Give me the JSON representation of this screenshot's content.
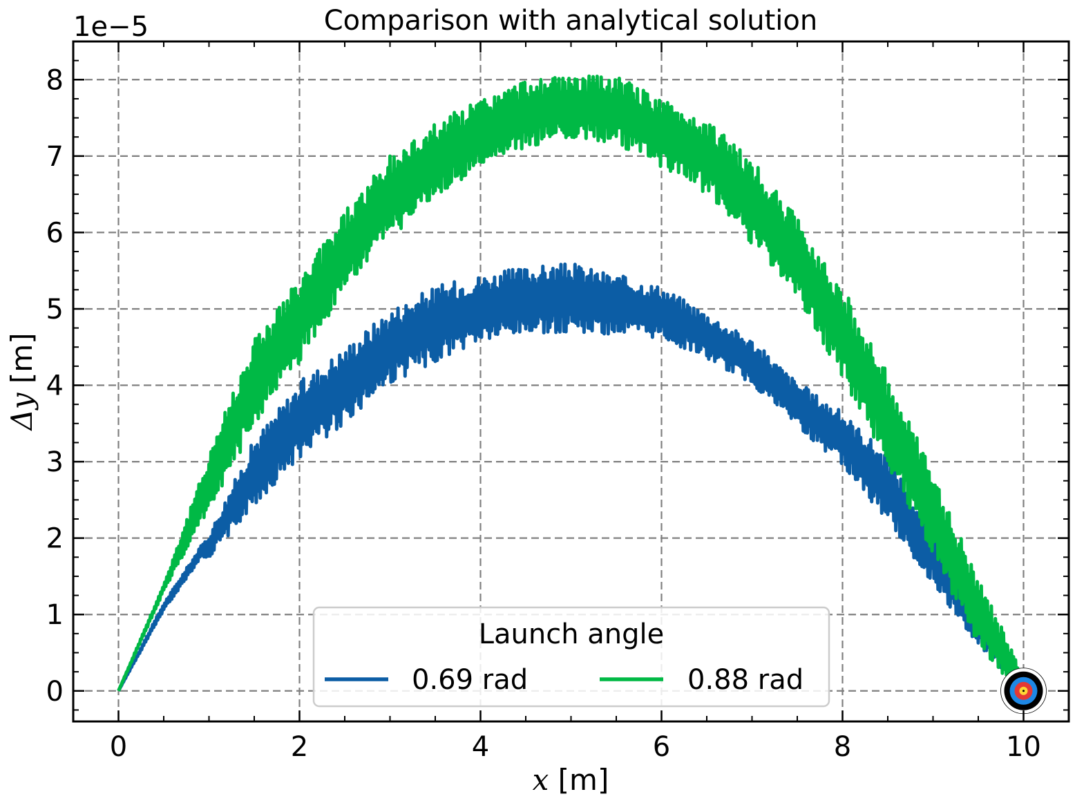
{
  "chart_data": {
    "type": "line",
    "title": "Comparison with analytical solution",
    "xlabel_var": "x",
    "xlabel_unit": " [m]",
    "ylabel_var": "Δy",
    "ylabel_unit": " [m]",
    "offset_text": "1e−5",
    "xlim": [
      -0.5,
      10.5
    ],
    "ylim": [
      -0.4,
      8.5
    ],
    "xticks": [
      0,
      2,
      4,
      6,
      8,
      10
    ],
    "xtick_labels": [
      "0",
      "2",
      "4",
      "6",
      "8",
      "10"
    ],
    "yticks": [
      0,
      1,
      2,
      3,
      4,
      5,
      6,
      7,
      8
    ],
    "ytick_labels": [
      "0",
      "1",
      "2",
      "3",
      "4",
      "5",
      "6",
      "7",
      "8"
    ],
    "grid": true,
    "legend": {
      "title": "Launch angle",
      "placement": "lower-center",
      "ncol": 2
    },
    "series": [
      {
        "name": "0.69 rad",
        "color": "#0C5DA5",
        "x": [
          0,
          0.5,
          0.9,
          1.0,
          1.5,
          2.0,
          2.5,
          3.0,
          3.5,
          4.0,
          4.5,
          5.0,
          5.5,
          6.0,
          6.5,
          7.0,
          7.5,
          8.0,
          8.5,
          9.0,
          9.5,
          10.0
        ],
        "y": [
          0,
          1.1,
          1.8,
          1.9,
          2.85,
          3.55,
          4.0,
          4.5,
          4.8,
          5.0,
          5.1,
          5.15,
          5.05,
          4.95,
          4.65,
          4.3,
          3.75,
          3.3,
          2.65,
          1.75,
          0.9,
          0.05
        ],
        "band": [
          0.0,
          0.05,
          0.08,
          0.15,
          0.45,
          0.5,
          0.5,
          0.5,
          0.5,
          0.45,
          0.45,
          0.45,
          0.4,
          0.35,
          0.3,
          0.3,
          0.3,
          0.35,
          0.45,
          0.35,
          0.3,
          0.1
        ]
      },
      {
        "name": "0.88 rad",
        "color": "#00B945",
        "x": [
          0,
          0.5,
          0.9,
          1.0,
          1.5,
          2.0,
          2.5,
          3.0,
          3.5,
          4.0,
          4.5,
          5.0,
          5.5,
          6.0,
          6.5,
          7.0,
          7.5,
          8.0,
          8.5,
          9.0,
          9.5,
          10.0
        ],
        "y": [
          0,
          1.35,
          2.45,
          2.75,
          4.05,
          4.85,
          5.75,
          6.45,
          6.95,
          7.3,
          7.55,
          7.65,
          7.6,
          7.3,
          7.0,
          6.4,
          5.65,
          4.7,
          3.55,
          2.3,
          1.05,
          0.05
        ],
        "band": [
          0.0,
          0.05,
          0.3,
          0.4,
          0.6,
          0.55,
          0.55,
          0.55,
          0.5,
          0.45,
          0.45,
          0.4,
          0.45,
          0.45,
          0.5,
          0.55,
          0.55,
          0.6,
          0.6,
          0.55,
          0.45,
          0.15
        ]
      }
    ]
  }
}
